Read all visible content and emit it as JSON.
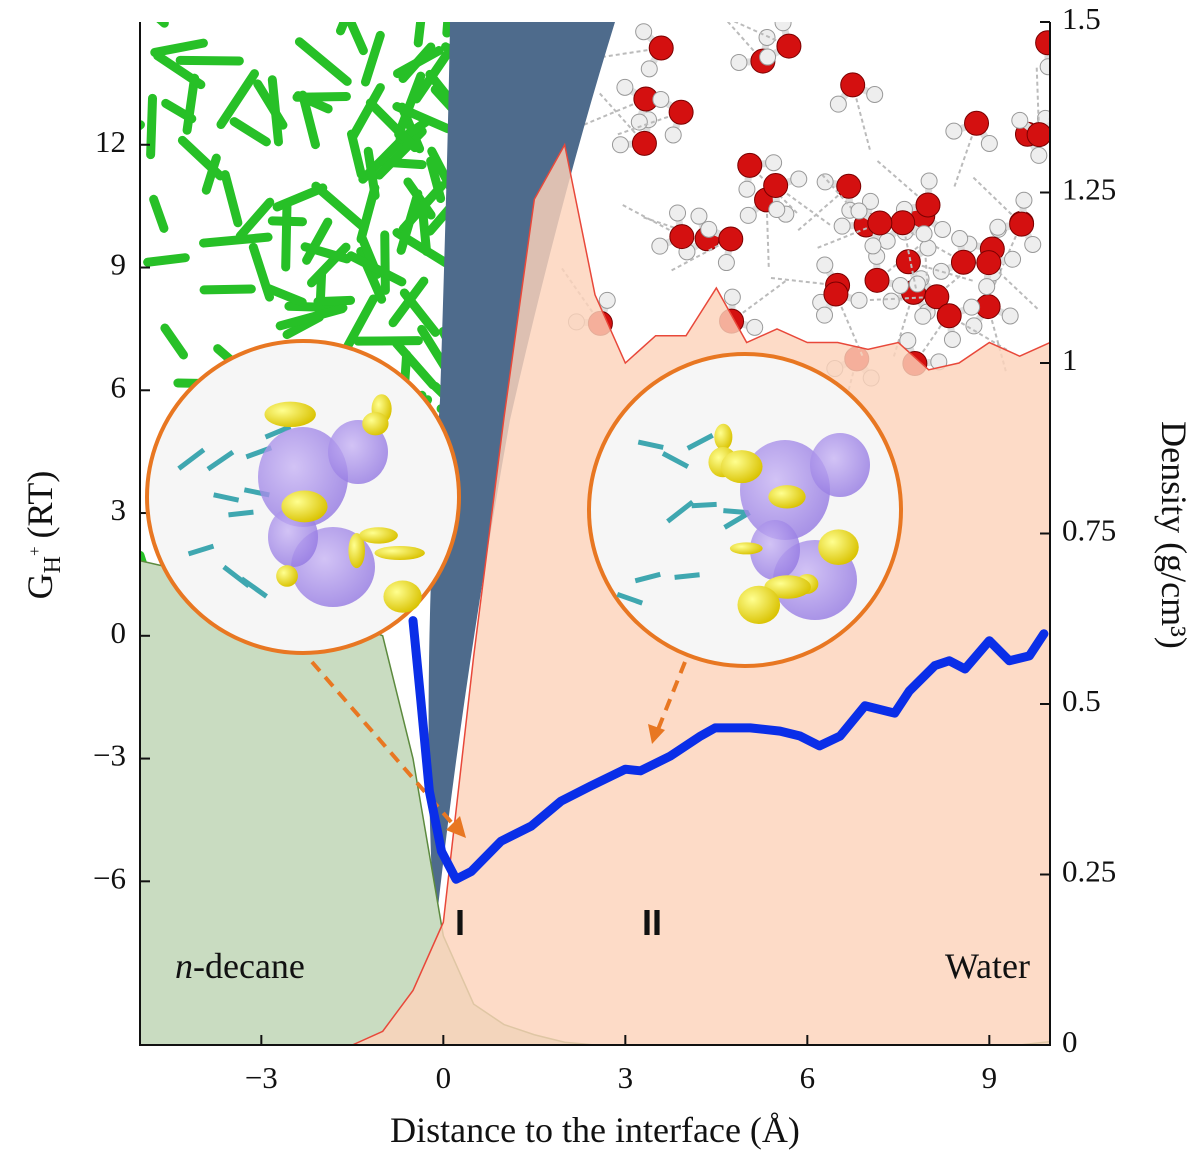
{
  "chart_data": {
    "type": "area-line",
    "x_label": "Distance to the interface (Å)",
    "y_label": {
      "text": "G",
      "subscript": "H",
      "superscript": "+",
      "unit": "(RT)"
    },
    "y2_label": "Density (g/cm³)",
    "xlim": [
      -5,
      10
    ],
    "xticks": [
      {
        "value": -3,
        "label": "−3"
      },
      0,
      3,
      6,
      9
    ],
    "ylim": [
      -10,
      15
    ],
    "yticks": [
      {
        "value": -6,
        "label": "−6"
      },
      {
        "value": -3,
        "label": "−3"
      },
      0,
      3,
      6,
      9,
      12
    ],
    "y2lim": [
      0,
      1.5
    ],
    "y2ticks": [
      0,
      0.25,
      0.5,
      0.75,
      1,
      1.25,
      1.5
    ],
    "annotations": [
      "I",
      "II"
    ],
    "series": [
      {
        "name": "n-decane",
        "color": "#c9dcc1",
        "axis": "y2",
        "x": [
          -5,
          -4.5,
          -4,
          -3.5,
          -3,
          -2.5,
          -2,
          -1.5,
          -1,
          -0.5,
          0,
          0.5,
          1,
          1.5,
          2,
          2.5,
          3,
          3.5,
          4,
          4.5,
          5,
          5.5,
          6,
          6.5,
          7,
          7.5,
          8,
          8.5,
          9,
          9.5,
          10
        ],
        "values": [
          0.71,
          0.7,
          0.69,
          0.68,
          0.67,
          0.655,
          0.64,
          0.62,
          0.6,
          0.42,
          0.16,
          0.06,
          0.03,
          0.015,
          0.004,
          0,
          0,
          0,
          0,
          0,
          0,
          0,
          0,
          0,
          0,
          0,
          0,
          0,
          0,
          0,
          0.005
        ]
      },
      {
        "name": "Water",
        "color": "#fcd3bb",
        "axis": "y2",
        "x": [
          -5,
          -4.5,
          -4,
          -3.5,
          -3,
          -2.5,
          -2,
          -1.5,
          -1,
          -0.5,
          0,
          0.5,
          1,
          1.5,
          2,
          2.5,
          3,
          3.5,
          4,
          4.5,
          5,
          5.5,
          6,
          6.5,
          7,
          7.5,
          8,
          8.5,
          9,
          9.5,
          10
        ],
        "values": [
          0,
          0,
          0,
          0,
          0,
          0,
          0,
          0,
          0.02,
          0.08,
          0.18,
          0.57,
          0.92,
          1.24,
          1.32,
          1.1,
          1.0,
          1.04,
          1.04,
          1.11,
          1.03,
          1.05,
          1.03,
          1.03,
          1.02,
          1.03,
          0.99,
          1.0,
          1.03,
          1.01,
          1.03
        ]
      },
      {
        "color": "#0a2ee8",
        "axis": "y",
        "x": [
          -0.5,
          -0.37,
          -0.23,
          -0.03,
          0.21,
          0.46,
          0.95,
          1.45,
          1.94,
          2.43,
          3.0,
          3.25,
          3.74,
          4.24,
          4.48,
          5.06,
          5.55,
          5.88,
          6.2,
          6.54,
          6.95,
          7.44,
          7.68,
          8.1,
          8.34,
          8.6,
          9.0,
          9.33,
          9.66,
          9.9
        ],
        "values": [
          0.37,
          -1.6,
          -3.8,
          -5.27,
          -5.95,
          -5.76,
          -5.02,
          -4.65,
          -4.04,
          -3.67,
          -3.26,
          -3.3,
          -2.94,
          -2.45,
          -2.25,
          -2.25,
          -2.33,
          -2.45,
          -2.69,
          -2.45,
          -1.71,
          -1.89,
          -1.35,
          -0.73,
          -0.61,
          -0.81,
          -0.12,
          -0.61,
          -0.49,
          0.05
        ]
      }
    ]
  }
}
